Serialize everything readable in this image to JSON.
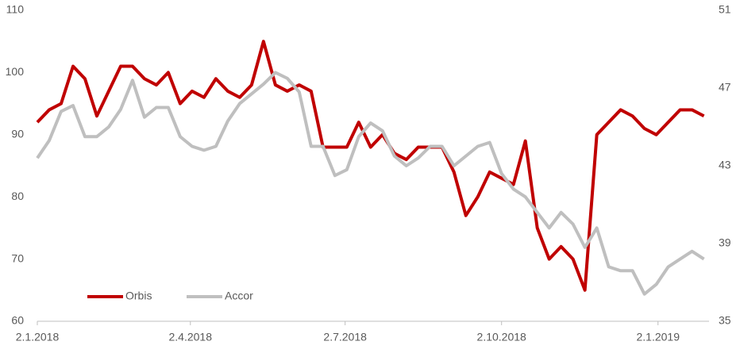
{
  "chart_data": {
    "type": "line",
    "x": [
      "2018-01-02",
      "2018-01-09",
      "2018-01-16",
      "2018-01-23",
      "2018-01-30",
      "2018-02-06",
      "2018-02-13",
      "2018-02-20",
      "2018-02-27",
      "2018-03-06",
      "2018-03-13",
      "2018-03-20",
      "2018-03-27",
      "2018-04-03",
      "2018-04-10",
      "2018-04-17",
      "2018-04-24",
      "2018-05-01",
      "2018-05-08",
      "2018-05-15",
      "2018-05-22",
      "2018-05-29",
      "2018-06-05",
      "2018-06-12",
      "2018-06-19",
      "2018-06-26",
      "2018-07-03",
      "2018-07-10",
      "2018-07-17",
      "2018-07-24",
      "2018-07-31",
      "2018-08-07",
      "2018-08-14",
      "2018-08-21",
      "2018-08-28",
      "2018-09-04",
      "2018-09-11",
      "2018-09-18",
      "2018-09-25",
      "2018-10-02",
      "2018-10-09",
      "2018-10-16",
      "2018-10-23",
      "2018-10-30",
      "2018-11-06",
      "2018-11-13",
      "2018-11-20",
      "2018-11-27",
      "2018-12-04",
      "2018-12-11",
      "2018-12-18",
      "2018-12-25",
      "2019-01-01",
      "2019-01-08",
      "2019-01-15",
      "2019-01-22",
      "2019-01-29"
    ],
    "series": [
      {
        "name": "Orbis",
        "color": "#c00000",
        "values": [
          92,
          94,
          95,
          101,
          99,
          93,
          97,
          101,
          101,
          99,
          98,
          100,
          95,
          97,
          96,
          99,
          97,
          96,
          98,
          105,
          98,
          97,
          98,
          97,
          88,
          88,
          88,
          92,
          88,
          90,
          87,
          86,
          88,
          88,
          88,
          84,
          77,
          80,
          84,
          83,
          82,
          89,
          75,
          70,
          72,
          70,
          65,
          90,
          92,
          94,
          93,
          91,
          90,
          92,
          94,
          94,
          93
        ]
      },
      {
        "name": "Accor",
        "color": "#bfbfbf",
        "axis": "y2",
        "values": [
          43.4,
          44.3,
          45.8,
          46.1,
          44.5,
          44.5,
          45.0,
          45.9,
          47.4,
          45.5,
          46.0,
          46.0,
          44.5,
          44.0,
          43.8,
          44.0,
          45.3,
          46.2,
          46.7,
          47.2,
          47.8,
          47.5,
          46.8,
          44.0,
          44.0,
          42.5,
          42.8,
          44.5,
          45.2,
          44.8,
          43.5,
          43.0,
          43.4,
          44.0,
          44.0,
          43.0,
          43.5,
          44.0,
          44.2,
          42.6,
          41.8,
          41.4,
          40.6,
          39.8,
          40.6,
          40.0,
          38.8,
          39.8,
          37.8,
          37.6,
          37.6,
          36.4,
          36.9,
          37.8,
          38.2,
          38.6,
          38.2
        ]
      }
    ],
    "xlim": [
      "2018-01-02",
      "2019-02-01"
    ],
    "xticks": [
      {
        "value": "2018-01-02",
        "label": "2.1.2018"
      },
      {
        "value": "2018-04-02",
        "label": "2.4.2018"
      },
      {
        "value": "2018-07-02",
        "label": "2.7.2018"
      },
      {
        "value": "2018-10-02",
        "label": "2.10.2018"
      },
      {
        "value": "2019-01-02",
        "label": "2.1.2019"
      }
    ],
    "ylim": [
      60,
      110
    ],
    "yticks": [
      60,
      70,
      80,
      90,
      100,
      110
    ],
    "y2lim": [
      35,
      51
    ],
    "y2ticks": [
      35,
      39,
      43,
      47,
      51
    ],
    "legend": "bottom-left"
  }
}
